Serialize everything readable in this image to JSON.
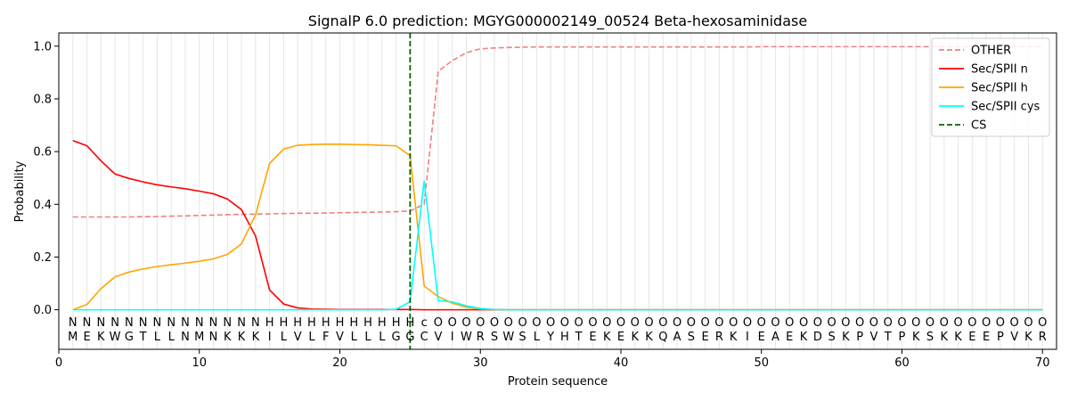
{
  "chart_data": {
    "type": "line",
    "title": "SignalP 6.0 prediction: MGYG000002149_00524 Beta-hexosaminidase",
    "xlabel": "Protein sequence",
    "ylabel": "Probability",
    "xlim": [
      0,
      71
    ],
    "ylim": [
      -0.15,
      1.05
    ],
    "x_ticks": [
      0,
      10,
      20,
      30,
      40,
      50,
      60,
      70
    ],
    "y_ticks": [
      0.0,
      0.2,
      0.4,
      0.6,
      0.8,
      1.0
    ],
    "y_tick_labels": [
      "0.0",
      "0.2",
      "0.4",
      "0.6",
      "0.8",
      "1.0"
    ],
    "legend_position": "top-right",
    "grid": "vertical lines at every residue",
    "sequence": [
      "M",
      "E",
      "K",
      "W",
      "G",
      "T",
      "L",
      "L",
      "N",
      "M",
      "N",
      "K",
      "K",
      "K",
      "I",
      "L",
      "V",
      "L",
      "F",
      "V",
      "L",
      "L",
      "L",
      "G",
      "G",
      "C",
      "V",
      "I",
      "W",
      "R",
      "S",
      "W",
      "S",
      "L",
      "Y",
      "H",
      "T",
      "E",
      "K",
      "E",
      "K",
      "K",
      "Q",
      "A",
      "S",
      "E",
      "R",
      "K",
      "I",
      "E",
      "A",
      "E",
      "K",
      "D",
      "S",
      "K",
      "P",
      "V",
      "T",
      "P",
      "K",
      "S",
      "K",
      "K",
      "E",
      "E",
      "P",
      "V",
      "K",
      "R"
    ],
    "labels": [
      "N",
      "N",
      "N",
      "N",
      "N",
      "N",
      "N",
      "N",
      "N",
      "N",
      "N",
      "N",
      "N",
      "N",
      "H",
      "H",
      "H",
      "H",
      "H",
      "H",
      "H",
      "H",
      "H",
      "H",
      "H",
      "c",
      "O",
      "O",
      "O",
      "O",
      "O",
      "O",
      "O",
      "O",
      "O",
      "O",
      "O",
      "O",
      "O",
      "O",
      "O",
      "O",
      "O",
      "O",
      "O",
      "O",
      "O",
      "O",
      "O",
      "O",
      "O",
      "O",
      "O",
      "O",
      "O",
      "O",
      "O",
      "O",
      "O",
      "O",
      "O",
      "O",
      "O",
      "O",
      "O",
      "O",
      "O",
      "O",
      "O",
      "O"
    ],
    "label_colors": {
      "N": "#ff0000",
      "H": "#ffa500",
      "c": "#00e5e5",
      "O": "#808080"
    },
    "cs_position": 25,
    "series": [
      {
        "name": "OTHER",
        "color": "#f08080",
        "dash": "dashed",
        "values": [
          0.352,
          0.352,
          0.352,
          0.352,
          0.352,
          0.353,
          0.354,
          0.355,
          0.356,
          0.358,
          0.359,
          0.361,
          0.362,
          0.363,
          0.364,
          0.365,
          0.366,
          0.366,
          0.367,
          0.368,
          0.369,
          0.37,
          0.371,
          0.372,
          0.375,
          0.4,
          0.905,
          0.945,
          0.975,
          0.99,
          0.993,
          0.995,
          0.996,
          0.997,
          0.997,
          0.997,
          0.997,
          0.997,
          0.997,
          0.997,
          0.997,
          0.997,
          0.997,
          0.997,
          0.997,
          0.997,
          0.997,
          0.997,
          0.997,
          0.998,
          0.998,
          0.998,
          0.998,
          0.998,
          0.998,
          0.998,
          0.998,
          0.998,
          0.998,
          0.998,
          0.998,
          0.998,
          0.998,
          0.998,
          0.998,
          0.998,
          0.998,
          0.998,
          0.998,
          0.998
        ]
      },
      {
        "name": "Sec/SPII n",
        "color": "#ff0000",
        "dash": "solid",
        "values": [
          0.642,
          0.622,
          0.565,
          0.515,
          0.498,
          0.485,
          0.474,
          0.466,
          0.459,
          0.45,
          0.44,
          0.42,
          0.38,
          0.28,
          0.075,
          0.022,
          0.007,
          0.003,
          0.002,
          0.001,
          0.001,
          0.001,
          0.001,
          0.001,
          0.001,
          0.0,
          0.0,
          0.0,
          0.0,
          0.0,
          0.0,
          0.0,
          0.0,
          0.0,
          0.0,
          0.0,
          0.0,
          0.0,
          0.0,
          0.0,
          0.0,
          0.0,
          0.0,
          0.0,
          0.0,
          0.0,
          0.0,
          0.0,
          0.0,
          0.0,
          0.0,
          0.0,
          0.0,
          0.0,
          0.0,
          0.0,
          0.0,
          0.0,
          0.0,
          0.0,
          0.0,
          0.0,
          0.0,
          0.0,
          0.0,
          0.0,
          0.0,
          0.0,
          0.0,
          0.0
        ]
      },
      {
        "name": "Sec/SPII h",
        "color": "#ffa500",
        "dash": "solid",
        "values": [
          0.0,
          0.02,
          0.08,
          0.125,
          0.143,
          0.155,
          0.164,
          0.171,
          0.177,
          0.184,
          0.193,
          0.21,
          0.25,
          0.36,
          0.555,
          0.61,
          0.624,
          0.627,
          0.628,
          0.628,
          0.627,
          0.626,
          0.624,
          0.622,
          0.585,
          0.09,
          0.05,
          0.025,
          0.01,
          0.003,
          0.001,
          0.0,
          0.0,
          0.0,
          0.0,
          0.0,
          0.0,
          0.0,
          0.0,
          0.0,
          0.0,
          0.0,
          0.0,
          0.0,
          0.0,
          0.0,
          0.0,
          0.0,
          0.0,
          0.0,
          0.0,
          0.0,
          0.0,
          0.0,
          0.0,
          0.0,
          0.0,
          0.0,
          0.0,
          0.0,
          0.0,
          0.0,
          0.0,
          0.0,
          0.0,
          0.0,
          0.0,
          0.0,
          0.0,
          0.0
        ]
      },
      {
        "name": "Sec/SPII cys",
        "color": "#00ffff",
        "dash": "solid",
        "values": [
          0.0,
          0.0,
          0.0,
          0.0,
          0.0,
          0.0,
          0.0,
          0.0,
          0.0,
          0.0,
          0.0,
          0.0,
          0.0,
          0.0,
          0.0,
          0.0,
          0.0,
          0.0,
          0.0,
          0.0,
          0.0,
          0.0,
          0.0,
          0.002,
          0.03,
          0.49,
          0.035,
          0.03,
          0.015,
          0.005,
          0.001,
          0.0,
          0.0,
          0.0,
          0.0,
          0.0,
          0.0,
          0.0,
          0.0,
          0.0,
          0.0,
          0.0,
          0.0,
          0.0,
          0.0,
          0.0,
          0.0,
          0.0,
          0.0,
          0.0,
          0.0,
          0.0,
          0.0,
          0.0,
          0.0,
          0.0,
          0.0,
          0.0,
          0.0,
          0.0,
          0.0,
          0.0,
          0.0,
          0.0,
          0.0,
          0.0,
          0.0,
          0.0,
          0.0,
          0.0
        ]
      },
      {
        "name": "CS",
        "color": "#006400",
        "dash": "dashed",
        "kind": "vertical-marker"
      }
    ]
  }
}
